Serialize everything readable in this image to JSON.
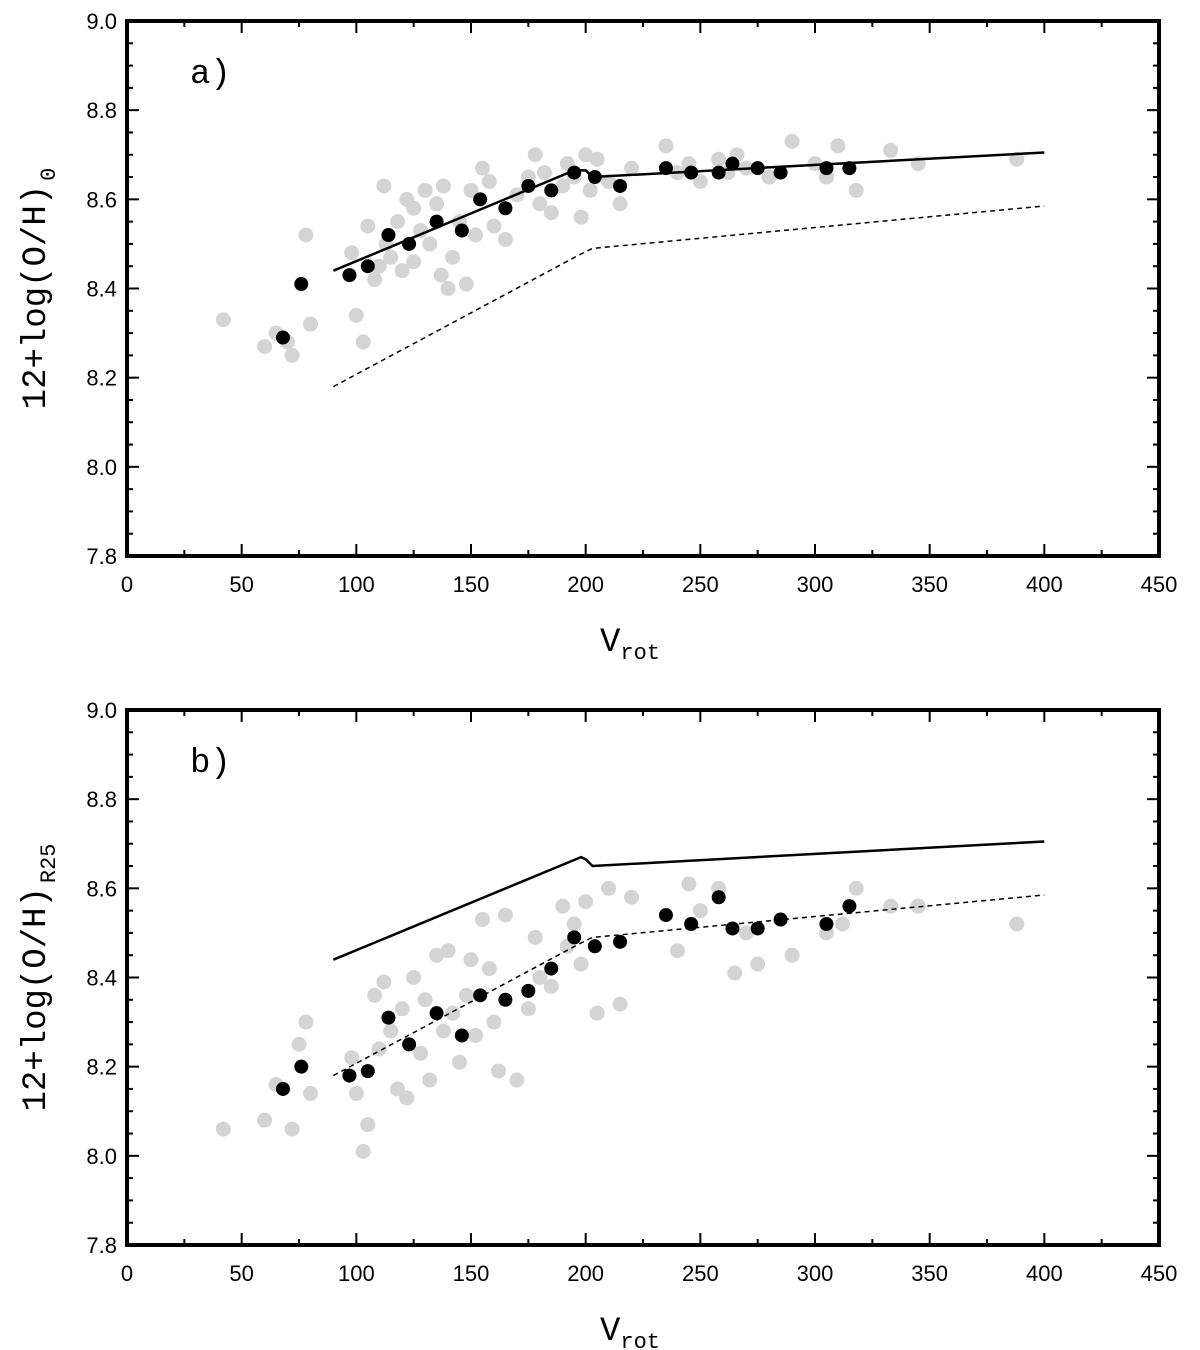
{
  "chart_data": [
    {
      "type": "scatter",
      "panel_label": "a)",
      "xlabel": "V",
      "xlabel_sub": "rot",
      "ylabel": "12+log(O/H)",
      "ylabel_sub": "0",
      "xlim": [
        0,
        450
      ],
      "ylim": [
        7.8,
        9.0
      ],
      "xticks": [
        "0",
        "50",
        "100",
        "150",
        "200",
        "250",
        "300",
        "350",
        "400",
        "450"
      ],
      "yticks": [
        "7.8",
        "8.0",
        "8.2",
        "8.4",
        "8.6",
        "8.8",
        "9.0"
      ],
      "colors": {
        "individual": "#d4d4d4",
        "binned": "#000000",
        "line": "#000000"
      },
      "series": [
        {
          "name": "individual galaxies",
          "style": "gray-points",
          "x": [
            42,
            60,
            65,
            70,
            72,
            80,
            78,
            98,
            100,
            103,
            105,
            108,
            110,
            112,
            113,
            115,
            118,
            120,
            122,
            125,
            125,
            128,
            130,
            132,
            135,
            137,
            138,
            140,
            142,
            145,
            148,
            150,
            152,
            155,
            158,
            160,
            165,
            170,
            175,
            178,
            180,
            182,
            185,
            190,
            192,
            195,
            198,
            200,
            202,
            205,
            210,
            215,
            220,
            235,
            240,
            245,
            250,
            258,
            262,
            266,
            270,
            280,
            290,
            300,
            305,
            310,
            318,
            333,
            345,
            388
          ],
          "y": [
            8.33,
            8.27,
            8.3,
            8.28,
            8.25,
            8.32,
            8.52,
            8.48,
            8.34,
            8.28,
            8.54,
            8.42,
            8.45,
            8.63,
            8.5,
            8.47,
            8.55,
            8.44,
            8.6,
            8.58,
            8.46,
            8.53,
            8.62,
            8.5,
            8.59,
            8.43,
            8.63,
            8.4,
            8.47,
            8.55,
            8.41,
            8.62,
            8.52,
            8.67,
            8.64,
            8.54,
            8.51,
            8.61,
            8.65,
            8.7,
            8.59,
            8.66,
            8.57,
            8.63,
            8.68,
            8.65,
            8.56,
            8.7,
            8.62,
            8.69,
            8.64,
            8.59,
            8.67,
            8.72,
            8.66,
            8.68,
            8.64,
            8.69,
            8.66,
            8.7,
            8.67,
            8.65,
            8.73,
            8.68,
            8.65,
            8.72,
            8.62,
            8.71,
            8.68,
            8.69
          ]
        },
        {
          "name": "binned averages",
          "style": "black-points",
          "x": [
            68,
            76,
            97,
            105,
            114,
            123,
            135,
            146,
            154,
            165,
            175,
            185,
            195,
            204,
            215,
            235,
            246,
            258,
            264,
            275,
            285,
            305,
            315
          ],
          "y": [
            8.29,
            8.41,
            8.43,
            8.45,
            8.52,
            8.5,
            8.55,
            8.53,
            8.6,
            8.58,
            8.63,
            8.62,
            8.66,
            8.65,
            8.63,
            8.67,
            8.66,
            8.66,
            8.68,
            8.67,
            8.66,
            8.67,
            8.67
          ]
        },
        {
          "name": "fit (solid)",
          "style": "solid-line",
          "x": [
            90,
            195,
            200,
            203,
            400
          ],
          "y": [
            8.44,
            8.665,
            8.665,
            8.65,
            8.705
          ]
        },
        {
          "name": "fit (dashed)",
          "style": "dashed-line",
          "x": [
            90,
            197,
            203,
            400
          ],
          "y": [
            8.18,
            8.475,
            8.49,
            8.585
          ]
        }
      ]
    },
    {
      "type": "scatter",
      "panel_label": "b)",
      "xlabel": "V",
      "xlabel_sub": "rot",
      "ylabel": "12+log(O/H)",
      "ylabel_sub": "R25",
      "xlim": [
        0,
        450
      ],
      "ylim": [
        7.8,
        9.0
      ],
      "xticks": [
        "0",
        "50",
        "100",
        "150",
        "200",
        "250",
        "300",
        "350",
        "400",
        "450"
      ],
      "yticks": [
        "7.8",
        "8.0",
        "8.2",
        "8.4",
        "8.6",
        "8.8",
        "9.0"
      ],
      "colors": {
        "individual": "#d4d4d4",
        "binned": "#000000",
        "line": "#000000"
      },
      "series": [
        {
          "name": "individual galaxies",
          "style": "gray-points",
          "x": [
            42,
            60,
            65,
            72,
            75,
            78,
            80,
            98,
            100,
            103,
            105,
            108,
            110,
            112,
            115,
            118,
            120,
            122,
            125,
            128,
            130,
            132,
            135,
            138,
            140,
            142,
            145,
            148,
            150,
            152,
            155,
            158,
            160,
            162,
            165,
            170,
            175,
            178,
            180,
            185,
            190,
            192,
            195,
            198,
            200,
            205,
            210,
            215,
            220,
            240,
            245,
            250,
            258,
            265,
            270,
            275,
            290,
            305,
            312,
            318,
            333,
            345,
            388
          ],
          "y": [
            8.06,
            8.08,
            8.16,
            8.06,
            8.25,
            8.3,
            8.14,
            8.22,
            8.14,
            8.01,
            8.07,
            8.36,
            8.24,
            8.39,
            8.28,
            8.15,
            8.33,
            8.13,
            8.4,
            8.23,
            8.35,
            8.17,
            8.45,
            8.28,
            8.46,
            8.32,
            8.21,
            8.36,
            8.44,
            8.27,
            8.53,
            8.42,
            8.3,
            8.19,
            8.54,
            8.17,
            8.33,
            8.49,
            8.4,
            8.38,
            8.56,
            8.47,
            8.52,
            8.43,
            8.57,
            8.32,
            8.6,
            8.34,
            8.58,
            8.46,
            8.61,
            8.55,
            8.6,
            8.41,
            8.5,
            8.43,
            8.45,
            8.5,
            8.52,
            8.6,
            8.56,
            8.56,
            8.52
          ]
        },
        {
          "name": "binned averages",
          "style": "black-points",
          "x": [
            68,
            76,
            97,
            105,
            114,
            123,
            135,
            146,
            154,
            165,
            175,
            185,
            195,
            204,
            215,
            235,
            246,
            258,
            264,
            275,
            285,
            305,
            315
          ],
          "y": [
            8.15,
            8.2,
            8.18,
            8.19,
            8.31,
            8.25,
            8.32,
            8.27,
            8.36,
            8.35,
            8.37,
            8.42,
            8.49,
            8.47,
            8.48,
            8.54,
            8.52,
            8.58,
            8.51,
            8.51,
            8.53,
            8.52,
            8.56
          ]
        },
        {
          "name": "fit (solid)",
          "style": "solid-line",
          "x": [
            90,
            198,
            200,
            203,
            400
          ],
          "y": [
            8.44,
            8.67,
            8.665,
            8.65,
            8.705
          ]
        },
        {
          "name": "fit (dashed)",
          "style": "dashed-line",
          "x": [
            90,
            197,
            203,
            400
          ],
          "y": [
            8.18,
            8.475,
            8.49,
            8.585
          ]
        }
      ]
    }
  ]
}
